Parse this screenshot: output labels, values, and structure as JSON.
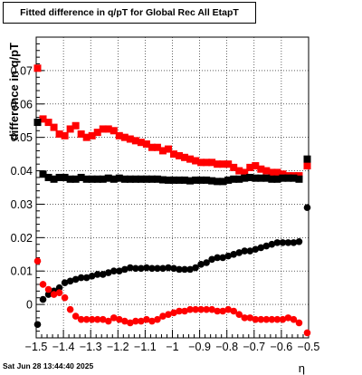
{
  "chart_data": {
    "type": "scatter",
    "title": "Fitted difference in q/pT for Global Rec All EtapT",
    "ylabel": "difference in q/pT",
    "xlabel": "η",
    "xlim": [
      -1.5,
      -0.5
    ],
    "ylim": [
      -0.01,
      0.08
    ],
    "x_ticks": [
      -1.5,
      -1.4,
      -1.3,
      -1.2,
      -1.1,
      -1.0,
      -0.9,
      -0.8,
      -0.7,
      -0.6,
      -0.5
    ],
    "x_tick_labels": [
      "−1.5",
      "−1.4",
      "−1.3",
      "−1.2",
      "−1.1",
      "−1",
      "−0.9",
      "−0.8",
      "−0.7",
      "−0.6",
      "−0.5"
    ],
    "y_ticks": [
      0,
      0.01,
      0.02,
      0.03,
      0.04,
      0.05,
      0.06,
      0.07
    ],
    "y_tick_labels": [
      "0",
      "0.01",
      "0.02",
      "0.03",
      "0.04",
      "0.05",
      "0.06",
      "0.07"
    ],
    "grid": true,
    "series": [
      {
        "marker": "square",
        "color": "#ff0000",
        "x": [
          -1.495,
          -1.475,
          -1.455,
          -1.435,
          -1.415,
          -1.395,
          -1.375,
          -1.355,
          -1.335,
          -1.315,
          -1.295,
          -1.275,
          -1.255,
          -1.235,
          -1.215,
          -1.195,
          -1.175,
          -1.155,
          -1.135,
          -1.115,
          -1.095,
          -1.075,
          -1.055,
          -1.035,
          -1.015,
          -0.995,
          -0.975,
          -0.955,
          -0.935,
          -0.915,
          -0.895,
          -0.875,
          -0.855,
          -0.835,
          -0.815,
          -0.795,
          -0.775,
          -0.755,
          -0.735,
          -0.715,
          -0.695,
          -0.675,
          -0.655,
          -0.635,
          -0.615,
          -0.595,
          -0.575,
          -0.555,
          -0.535,
          -0.505
        ],
        "y": [
          0.0707,
          0.0555,
          0.0545,
          0.053,
          0.051,
          0.0505,
          0.0525,
          0.0535,
          0.051,
          0.05,
          0.0505,
          0.0515,
          0.0525,
          0.0525,
          0.052,
          0.0505,
          0.05,
          0.0495,
          0.049,
          0.0485,
          0.048,
          0.047,
          0.047,
          0.046,
          0.0465,
          0.045,
          0.0445,
          0.044,
          0.0435,
          0.043,
          0.0425,
          0.0425,
          0.0425,
          0.042,
          0.042,
          0.042,
          0.041,
          0.04,
          0.0395,
          0.041,
          0.0415,
          0.0405,
          0.04,
          0.0395,
          0.0395,
          0.039,
          0.0385,
          0.0385,
          0.0385,
          0.0415
        ]
      },
      {
        "marker": "square",
        "color": "#000000",
        "x": [
          -1.495,
          -1.475,
          -1.455,
          -1.435,
          -1.415,
          -1.395,
          -1.375,
          -1.355,
          -1.335,
          -1.315,
          -1.295,
          -1.275,
          -1.255,
          -1.235,
          -1.215,
          -1.195,
          -1.175,
          -1.155,
          -1.135,
          -1.115,
          -1.095,
          -1.075,
          -1.055,
          -1.035,
          -1.015,
          -0.995,
          -0.975,
          -0.955,
          -0.935,
          -0.915,
          -0.895,
          -0.875,
          -0.855,
          -0.835,
          -0.815,
          -0.795,
          -0.775,
          -0.755,
          -0.735,
          -0.715,
          -0.695,
          -0.675,
          -0.655,
          -0.635,
          -0.615,
          -0.595,
          -0.575,
          -0.555,
          -0.535,
          -0.505
        ],
        "y": [
          0.0545,
          0.039,
          0.038,
          0.0375,
          0.038,
          0.038,
          0.0375,
          0.0375,
          0.038,
          0.0375,
          0.0375,
          0.0375,
          0.0375,
          0.0378,
          0.0375,
          0.0378,
          0.0375,
          0.0375,
          0.0375,
          0.0375,
          0.0375,
          0.0375,
          0.0375,
          0.0373,
          0.0372,
          0.0372,
          0.0372,
          0.0372,
          0.037,
          0.0372,
          0.0372,
          0.0372,
          0.037,
          0.0368,
          0.0368,
          0.0372,
          0.0375,
          0.0375,
          0.0378,
          0.038,
          0.0378,
          0.0378,
          0.0378,
          0.0375,
          0.0375,
          0.0378,
          0.0378,
          0.0378,
          0.0375,
          0.0435
        ]
      },
      {
        "marker": "circle",
        "color": "#000000",
        "x": [
          -1.495,
          -1.475,
          -1.455,
          -1.435,
          -1.415,
          -1.395,
          -1.375,
          -1.355,
          -1.335,
          -1.315,
          -1.295,
          -1.275,
          -1.255,
          -1.235,
          -1.215,
          -1.195,
          -1.175,
          -1.155,
          -1.135,
          -1.115,
          -1.095,
          -1.075,
          -1.055,
          -1.035,
          -1.015,
          -0.995,
          -0.975,
          -0.955,
          -0.935,
          -0.915,
          -0.895,
          -0.875,
          -0.855,
          -0.835,
          -0.815,
          -0.795,
          -0.775,
          -0.755,
          -0.735,
          -0.715,
          -0.695,
          -0.675,
          -0.655,
          -0.635,
          -0.615,
          -0.595,
          -0.575,
          -0.555,
          -0.535,
          -0.505
        ],
        "y": [
          -0.006,
          0.0015,
          0.003,
          0.004,
          0.005,
          0.0065,
          0.007,
          0.0075,
          0.008,
          0.008,
          0.0085,
          0.009,
          0.009,
          0.0095,
          0.01,
          0.01,
          0.0105,
          0.011,
          0.0108,
          0.0108,
          0.011,
          0.0108,
          0.0108,
          0.0108,
          0.011,
          0.0108,
          0.0105,
          0.0105,
          0.0105,
          0.011,
          0.012,
          0.0125,
          0.0135,
          0.014,
          0.014,
          0.0145,
          0.015,
          0.0155,
          0.016,
          0.016,
          0.0165,
          0.017,
          0.0175,
          0.018,
          0.0185,
          0.0185,
          0.0185,
          0.0185,
          0.0188,
          0.029
        ]
      },
      {
        "marker": "circle",
        "color": "#ff0000",
        "x": [
          -1.495,
          -1.475,
          -1.455,
          -1.435,
          -1.415,
          -1.395,
          -1.375,
          -1.355,
          -1.335,
          -1.315,
          -1.295,
          -1.275,
          -1.255,
          -1.235,
          -1.215,
          -1.195,
          -1.175,
          -1.155,
          -1.135,
          -1.115,
          -1.095,
          -1.075,
          -1.055,
          -1.035,
          -1.015,
          -0.995,
          -0.975,
          -0.955,
          -0.935,
          -0.915,
          -0.895,
          -0.875,
          -0.855,
          -0.835,
          -0.815,
          -0.795,
          -0.775,
          -0.755,
          -0.735,
          -0.715,
          -0.695,
          -0.675,
          -0.655,
          -0.635,
          -0.615,
          -0.595,
          -0.575,
          -0.555,
          -0.535,
          -0.505
        ],
        "y": [
          0.013,
          0.006,
          0.0045,
          0.003,
          0.0035,
          0.002,
          -0.0015,
          -0.0035,
          -0.0045,
          -0.0045,
          -0.0045,
          -0.0045,
          -0.0045,
          -0.005,
          -0.004,
          -0.0045,
          -0.005,
          -0.0055,
          -0.005,
          -0.005,
          -0.0045,
          -0.005,
          -0.0045,
          -0.0035,
          -0.003,
          -0.0025,
          -0.002,
          -0.002,
          -0.0015,
          -0.0015,
          -0.0015,
          -0.0015,
          -0.0015,
          -0.002,
          -0.002,
          -0.0015,
          -0.002,
          -0.003,
          -0.004,
          -0.004,
          -0.0045,
          -0.0045,
          -0.0045,
          -0.0045,
          -0.0045,
          -0.0045,
          -0.004,
          -0.0045,
          -0.0055,
          -0.0085
        ]
      }
    ]
  },
  "timestamp": "Sat Jun 28 13:44:40 2025"
}
